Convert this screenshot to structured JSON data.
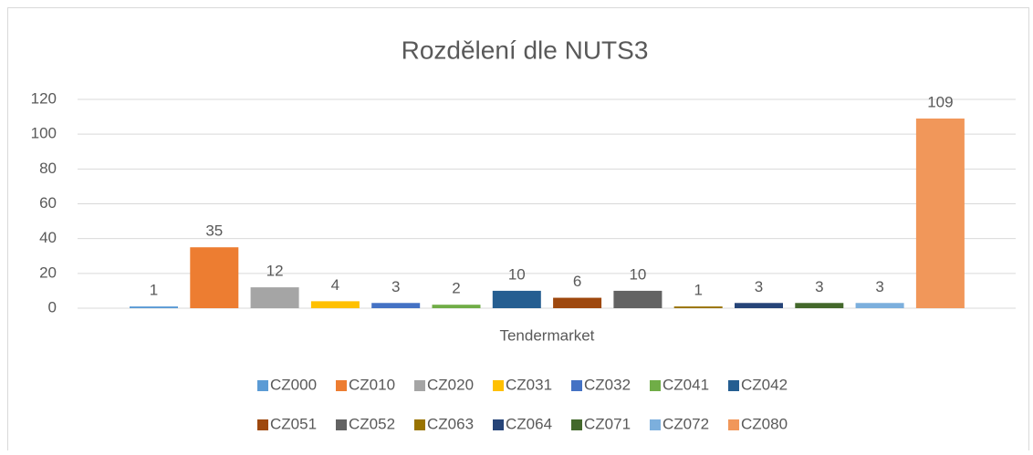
{
  "chart_data": {
    "type": "bar",
    "title": "Rozdělení dle NUTS3",
    "categories": [
      "Tendermarket"
    ],
    "series": [
      {
        "name": "CZ000",
        "color": "#5b9bd5",
        "values": [
          1
        ]
      },
      {
        "name": "CZ010",
        "color": "#ed7d31",
        "values": [
          35
        ]
      },
      {
        "name": "CZ020",
        "color": "#a5a5a5",
        "values": [
          12
        ]
      },
      {
        "name": "CZ031",
        "color": "#ffc000",
        "values": [
          4
        ]
      },
      {
        "name": "CZ032",
        "color": "#4472c4",
        "values": [
          3
        ]
      },
      {
        "name": "CZ041",
        "color": "#70ad47",
        "values": [
          2
        ]
      },
      {
        "name": "CZ042",
        "color": "#255e91",
        "values": [
          10
        ]
      },
      {
        "name": "CZ051",
        "color": "#9e480e",
        "values": [
          6
        ]
      },
      {
        "name": "CZ052",
        "color": "#636363",
        "values": [
          10
        ]
      },
      {
        "name": "CZ063",
        "color": "#997300",
        "values": [
          1
        ]
      },
      {
        "name": "CZ064",
        "color": "#264478",
        "values": [
          3
        ]
      },
      {
        "name": "CZ071",
        "color": "#43682b",
        "values": [
          3
        ]
      },
      {
        "name": "CZ072",
        "color": "#7cafdd",
        "values": [
          3
        ]
      },
      {
        "name": "CZ080",
        "color": "#f1975a",
        "values": [
          109
        ]
      }
    ],
    "ylim": [
      0,
      120
    ],
    "yticks": [
      0,
      20,
      40,
      60,
      80,
      100,
      120
    ],
    "grid": true,
    "legend": "bottom"
  }
}
